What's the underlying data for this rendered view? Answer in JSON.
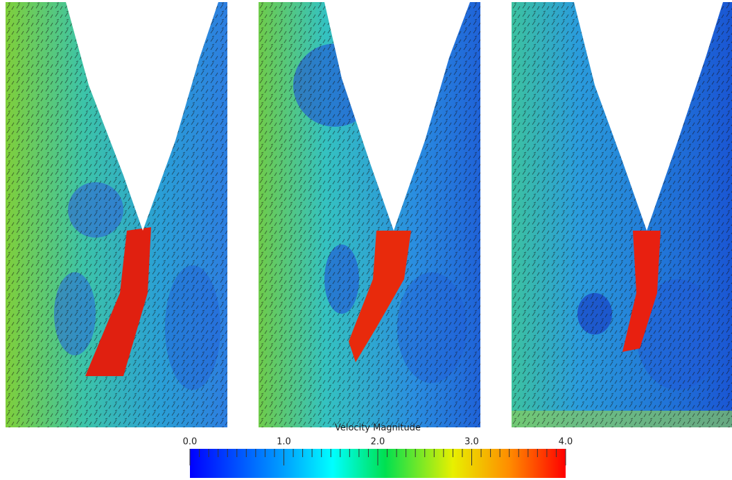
{
  "colorbar": {
    "title": "Velocity Magnitude",
    "range": [
      0,
      4
    ],
    "ticks": [
      {
        "value": 0,
        "label": "0.0"
      },
      {
        "value": 1,
        "label": "1.0"
      },
      {
        "value": 2,
        "label": "2.0"
      },
      {
        "value": 3,
        "label": "3.0"
      },
      {
        "value": 4,
        "label": "4.0"
      }
    ]
  }
}
